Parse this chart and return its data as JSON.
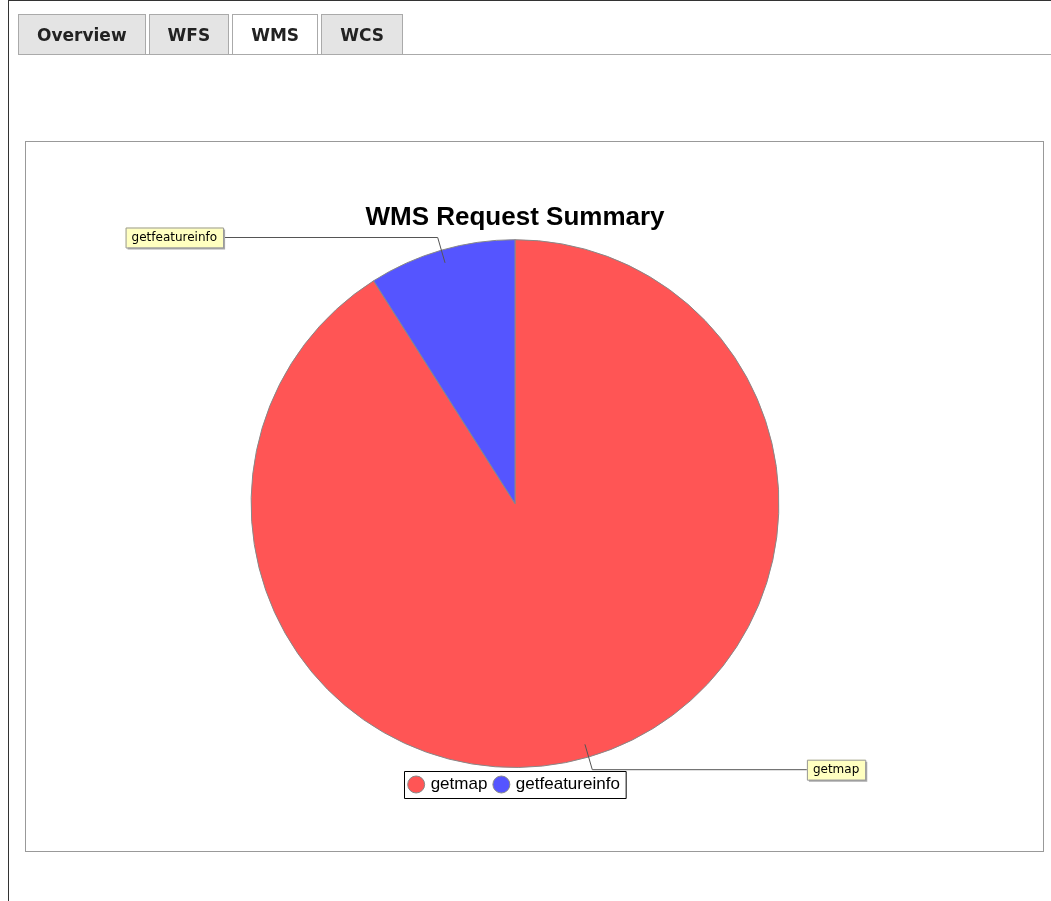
{
  "chart_data": {
    "type": "pie",
    "title": "WMS Request Summary",
    "categories": [
      "getmap",
      "getfeatureinfo"
    ],
    "values": [
      91,
      9
    ],
    "colors": [
      "#ff5555",
      "#5555ff"
    ],
    "legend": "bottom",
    "annotations": [
      "Overview",
      "WFS",
      "WMS",
      "WCS"
    ]
  }
}
